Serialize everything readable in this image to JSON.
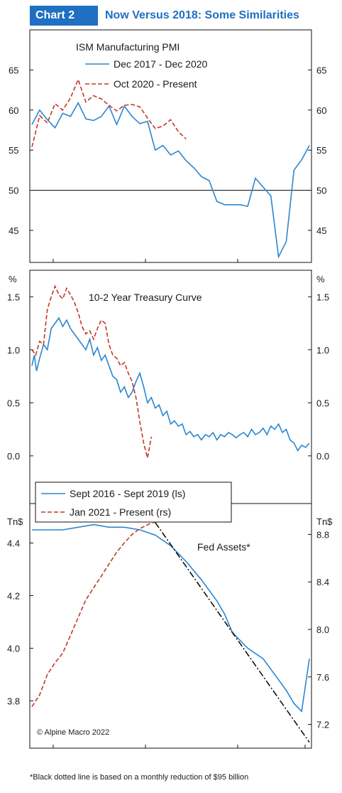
{
  "header": {
    "badge": "Chart 2",
    "title": "Now Versus 2018: Some Similarities"
  },
  "colors": {
    "blue": "#2a86d1",
    "red": "#c0392b",
    "black": "#111111",
    "brand": "#1f6fc2"
  },
  "footnote": "*Black dotted line is based on a monthly reduction of $95 billion",
  "chart_data": [
    {
      "type": "line",
      "title": "ISM Manufacturing PMI",
      "ylim": [
        41,
        70
      ],
      "y_ticks": [
        45,
        50,
        55,
        60,
        65
      ],
      "ref_line": 50,
      "grid": false,
      "legend": "top-center",
      "series": [
        {
          "name": "Dec 2017 - Dec 2020",
          "color": "#2a86d1",
          "style": "solid",
          "x": [
            0,
            1,
            2,
            3,
            4,
            5,
            6,
            7,
            8,
            9,
            10,
            11,
            12,
            13,
            14,
            15,
            16,
            17,
            18,
            19,
            20,
            21,
            22,
            23,
            24,
            25,
            26,
            27,
            28,
            29,
            30,
            31,
            32,
            33,
            34,
            35,
            36
          ],
          "values": [
            58.2,
            60.0,
            58.8,
            57.8,
            59.6,
            59.2,
            60.9,
            58.9,
            58.7,
            59.2,
            60.5,
            58.2,
            60.5,
            59.2,
            58.3,
            58.6,
            55.0,
            55.6,
            54.4,
            54.9,
            53.7,
            52.8,
            51.7,
            51.2,
            48.6,
            48.2,
            48.2,
            48.2,
            48.0,
            51.5,
            50.4,
            49.3,
            41.7,
            43.6,
            52.5,
            53.8,
            55.6
          ]
        },
        {
          "name": "Oct 2020 - Present",
          "color": "#c0392b",
          "style": "dashed",
          "x": [
            0,
            1,
            2,
            3,
            4,
            5,
            6,
            7,
            8,
            9,
            10,
            11,
            12,
            13,
            14,
            15,
            16,
            17,
            18,
            19,
            20
          ],
          "values": [
            55.4,
            59.3,
            58.4,
            60.8,
            60.0,
            61.5,
            63.8,
            61.0,
            61.8,
            61.4,
            60.6,
            59.9,
            60.6,
            60.7,
            60.4,
            59.0,
            57.7,
            58.0,
            58.8,
            57.3,
            56.4
          ]
        }
      ],
      "x_total": 36
    },
    {
      "type": "line",
      "title": "10-2 Year Treasury Curve",
      "ylabel_left": "%",
      "ylabel_right": "%",
      "ylim": [
        -0.45,
        1.75
      ],
      "y_ticks": [
        "0.0",
        "0.5",
        "1.0",
        "1.5"
      ],
      "grid": false,
      "legend": "bottom-left",
      "series": [
        {
          "name": "Sept 2016 - Sept 2019 (ls)",
          "color": "#2a86d1",
          "style": "solid",
          "x": [
            0,
            0.3,
            0.6,
            1,
            1.5,
            2,
            2.5,
            3,
            3.5,
            4,
            4.5,
            5,
            5.5,
            6,
            6.5,
            7,
            7.5,
            8,
            8.5,
            9,
            9.5,
            10,
            10.5,
            11,
            11.5,
            12,
            12.5,
            13,
            13.5,
            14,
            14.5,
            15,
            15.5,
            16,
            16.5,
            17,
            17.5,
            18,
            18.5,
            19,
            19.5,
            20,
            20.5,
            21,
            21.5,
            22,
            22.5,
            23,
            23.5,
            24,
            24.5,
            25,
            25.5,
            26,
            26.5,
            27,
            27.5,
            28,
            28.5,
            29,
            29.5,
            30,
            30.5,
            31,
            31.5,
            32,
            32.5,
            33,
            33.5,
            34,
            34.5,
            35,
            35.5,
            36
          ],
          "values": [
            0.85,
            0.95,
            0.8,
            0.92,
            1.05,
            1.0,
            1.2,
            1.25,
            1.3,
            1.22,
            1.28,
            1.2,
            1.15,
            1.1,
            1.05,
            1.0,
            1.1,
            0.95,
            1.02,
            0.9,
            0.95,
            0.85,
            0.75,
            0.72,
            0.6,
            0.65,
            0.55,
            0.6,
            0.7,
            0.78,
            0.65,
            0.5,
            0.55,
            0.45,
            0.48,
            0.38,
            0.42,
            0.3,
            0.33,
            0.28,
            0.3,
            0.2,
            0.23,
            0.18,
            0.2,
            0.15,
            0.2,
            0.18,
            0.22,
            0.15,
            0.2,
            0.18,
            0.22,
            0.2,
            0.17,
            0.2,
            0.22,
            0.18,
            0.25,
            0.2,
            0.22,
            0.26,
            0.2,
            0.28,
            0.25,
            0.3,
            0.22,
            0.25,
            0.15,
            0.12,
            0.05,
            0.1,
            0.08,
            0.12
          ],
          "x_total": 36
        },
        {
          "name": "Jan 2021 - Present (rs)",
          "color": "#c0392b",
          "style": "dashed",
          "x": [
            0,
            0.5,
            1,
            1.5,
            2,
            2.5,
            3,
            3.5,
            4,
            4.5,
            5,
            5.5,
            6,
            6.5,
            7,
            7.5,
            8,
            8.5,
            9,
            9.5,
            10,
            10.5,
            11,
            11.5,
            12,
            12.5,
            13,
            13.5,
            14,
            14.5,
            15,
            15.5
          ],
          "values": [
            1.0,
            0.95,
            1.08,
            1.05,
            1.38,
            1.5,
            1.6,
            1.52,
            1.48,
            1.58,
            1.52,
            1.45,
            1.35,
            1.22,
            1.15,
            1.18,
            1.1,
            1.2,
            1.28,
            1.25,
            1.05,
            0.95,
            0.92,
            0.85,
            0.88,
            0.78,
            0.7,
            0.55,
            0.32,
            0.12,
            -0.02,
            0.18
          ],
          "x_total": 36
        }
      ]
    },
    {
      "type": "line",
      "title": "Fed Assets*",
      "ylabel_left": "Tn$",
      "ylabel_right": "Tn$",
      "ylim_left": [
        3.62,
        4.55
      ],
      "ylim_right": [
        7.0,
        9.06
      ],
      "y_ticks_left": [
        "3.8",
        "4.0",
        "4.2",
        "4.4"
      ],
      "y_ticks_right": [
        "7.2",
        "7.6",
        "8.0",
        "8.4",
        "8.8"
      ],
      "grid": false,
      "annotation": "© Alpine Macro 2022",
      "series": [
        {
          "name": "Sept 2016 - Sept 2019 (ls)",
          "color": "#2a86d1",
          "style": "solid",
          "axis": "left",
          "x": [
            0,
            2,
            4,
            6,
            8,
            10,
            12,
            14,
            16,
            18,
            20,
            22,
            24,
            25,
            26,
            28,
            30,
            32,
            33,
            34,
            35,
            36
          ],
          "values": [
            4.45,
            4.45,
            4.45,
            4.46,
            4.47,
            4.46,
            4.46,
            4.45,
            4.43,
            4.39,
            4.33,
            4.26,
            4.18,
            4.13,
            4.06,
            4.0,
            3.96,
            3.88,
            3.84,
            3.79,
            3.76,
            3.96
          ]
        },
        {
          "name": "Jan 2021 - Present (rs)",
          "color": "#c0392b",
          "style": "dashed",
          "axis": "right",
          "x": [
            0,
            1,
            2,
            3,
            4,
            5,
            6,
            7,
            8,
            9,
            10,
            11,
            12,
            13,
            14,
            15,
            15.5,
            16
          ],
          "values": [
            7.35,
            7.45,
            7.62,
            7.72,
            7.8,
            7.95,
            8.1,
            8.25,
            8.35,
            8.45,
            8.55,
            8.65,
            8.73,
            8.8,
            8.85,
            8.88,
            8.9,
            8.9
          ]
        },
        {
          "name": "",
          "color": "#111111",
          "style": "dashdot",
          "axis": "right",
          "x": [
            16,
            36
          ],
          "values": [
            8.9,
            7.05
          ]
        }
      ]
    }
  ]
}
